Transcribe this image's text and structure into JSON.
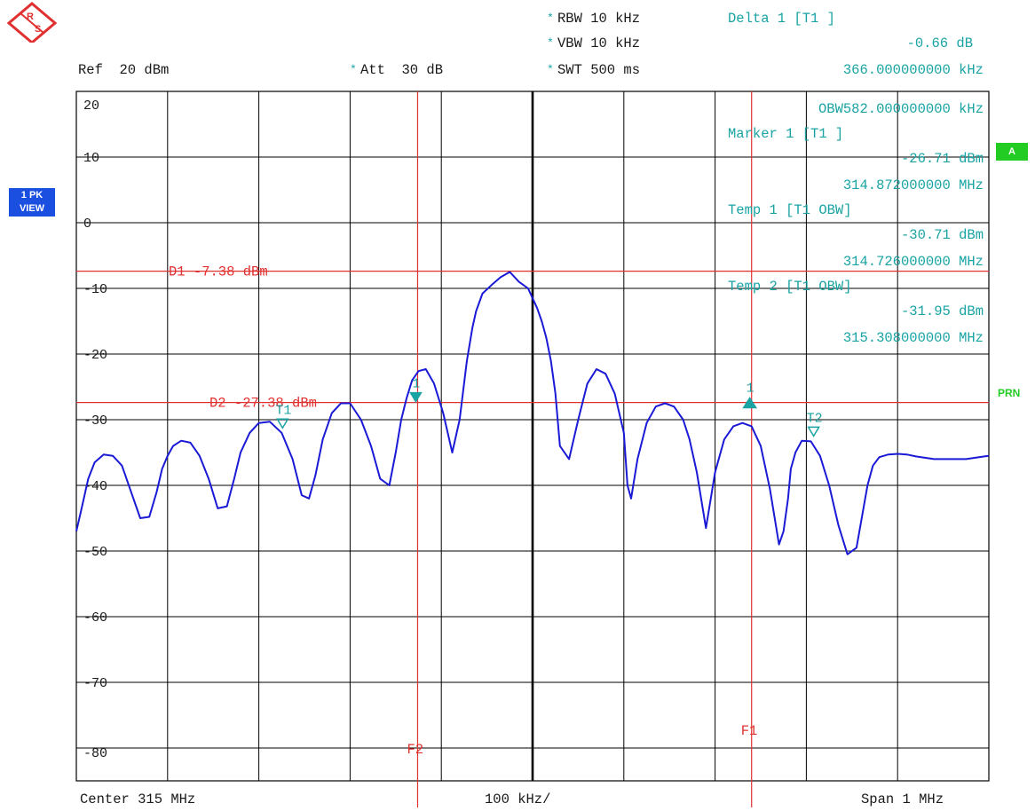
{
  "header": {
    "rbw": "RBW 10 kHz",
    "vbw": "VBW 10 kHz",
    "swt": "SWT 500 ms",
    "ref": "Ref  20 dBm",
    "att": "Att  30 dB",
    "asterisk": "*"
  },
  "marker_info": [
    "Delta 1 [T1 ]",
    "-0.66 dB",
    "366.000000000 kHz",
    "OBW582.000000000 kHz",
    "Marker 1 [T1 ]",
    "-26.71 dBm",
    "314.872000000 MHz",
    "Temp 1 [T1 OBW]",
    "-30.71 dBm",
    "314.726000000 MHz",
    "Temp 2 [T1 OBW]",
    "-31.95 dBm",
    "315.308000000 MHz"
  ],
  "side": {
    "trace_mode_line1": "1 PK",
    "trace_mode_line2": "VIEW",
    "badge_a": "A",
    "badge_prn": "PRN"
  },
  "footer": {
    "center": "Center 315 MHz",
    "div": "100 kHz/",
    "span": "Span 1 MHz"
  },
  "colors": {
    "trace": "#1a1ad6",
    "marker_lines": "#e03030",
    "marker_text": "#1aa3a3",
    "grid": "#000000",
    "side_badge_green": "#22cc22",
    "side_badge_blue": "#1a4fe0"
  },
  "chart_data": {
    "type": "line",
    "title": "",
    "xlabel": "",
    "ylabel": "",
    "xlim": [
      314.5,
      315.5
    ],
    "ylim": [
      -85,
      20
    ],
    "y_ticks": [
      20,
      10,
      0,
      -10,
      -20,
      -30,
      -40,
      -50,
      -60,
      -70,
      -80
    ],
    "y_tick_labels": [
      "20",
      "10",
      "0",
      "-10",
      "-20",
      "-30",
      "-40",
      "-50",
      "-60",
      "-70",
      "-80"
    ],
    "grid": true,
    "x_unit": "MHz",
    "y_unit": "dBm",
    "display_lines": [
      {
        "name": "D1",
        "label": "D1 -7.38 dBm",
        "value": -7.38
      },
      {
        "name": "D2",
        "label": "D2 -27.38 dBm",
        "value": -27.38
      }
    ],
    "freq_lines": [
      {
        "name": "F1",
        "label": "F1",
        "x": 315.24
      },
      {
        "name": "F2",
        "label": "F2",
        "x": 314.874
      }
    ],
    "markers": [
      {
        "label": "1",
        "x": 314.872,
        "y": -26.71,
        "kind": "down"
      },
      {
        "label": "1",
        "x": 315.238,
        "y": -27.37,
        "kind": "up"
      },
      {
        "label": "T1",
        "x": 314.726,
        "y": -30.71,
        "kind": "down"
      },
      {
        "label": "T2",
        "x": 315.308,
        "y": -31.95,
        "kind": "down"
      }
    ],
    "series": [
      {
        "x": [
          314.5,
          314.505,
          314.513,
          314.52,
          314.53,
          314.54,
          314.55,
          314.56,
          314.57,
          314.58,
          314.588,
          314.594,
          314.6,
          314.606,
          314.615,
          314.625,
          314.635,
          314.645,
          314.655,
          314.665,
          314.673,
          314.68,
          314.69,
          314.7,
          314.712,
          314.725,
          314.737,
          314.747,
          314.755,
          314.762,
          314.77,
          314.78,
          314.79,
          314.8,
          314.812,
          314.823,
          314.833,
          314.843,
          314.85,
          314.856,
          314.862,
          314.868,
          314.875,
          314.883,
          314.892,
          314.902,
          314.912,
          314.92,
          314.928,
          314.934,
          314.938,
          314.945,
          314.955,
          314.965,
          314.975,
          314.985,
          314.995,
          315.0,
          315.005,
          315.01,
          315.015,
          315.02,
          315.025,
          315.03,
          315.04,
          315.05,
          315.06,
          315.07,
          315.08,
          315.09,
          315.1,
          315.104,
          315.108,
          315.115,
          315.125,
          315.135,
          315.145,
          315.155,
          315.165,
          315.172,
          315.18,
          315.19,
          315.2,
          315.21,
          315.22,
          315.23,
          315.24,
          315.25,
          315.26,
          315.27,
          315.275,
          315.28,
          315.283,
          315.288,
          315.295,
          315.305,
          315.315,
          315.325,
          315.335,
          315.345,
          315.355,
          315.362,
          315.367,
          315.373,
          315.38,
          315.39,
          315.4,
          315.41,
          315.42,
          315.43,
          315.44,
          315.448,
          315.452,
          315.458,
          315.465,
          315.475,
          315.485,
          315.495,
          315.5
        ],
        "y": [
          -47,
          -44,
          -39,
          -36.5,
          -35.3,
          -35.5,
          -37,
          -41,
          -45,
          -44.8,
          -41,
          -37.5,
          -35.5,
          -34,
          -33.2,
          -33.5,
          -35.5,
          -39,
          -43.5,
          -43.2,
          -39,
          -35,
          -32,
          -30.5,
          -30.3,
          -32,
          -36,
          -41.5,
          -42,
          -38.5,
          -33,
          -29,
          -27.5,
          -27.5,
          -30,
          -34,
          -39,
          -40,
          -35,
          -30,
          -26.7,
          -24,
          -22.6,
          -22.3,
          -24.5,
          -29,
          -35,
          -30,
          -21,
          -16,
          -13.5,
          -10.8,
          -9.5,
          -8.3,
          -7.5,
          -9,
          -10,
          -11.5,
          -13,
          -15,
          -17.5,
          -21,
          -26,
          -34,
          -36,
          -30,
          -24.5,
          -22.3,
          -23,
          -26,
          -32,
          -40,
          -42,
          -36,
          -30.5,
          -28,
          -27.5,
          -28,
          -30,
          -33,
          -38,
          -46.5,
          -38,
          -33,
          -31,
          -30.5,
          -31,
          -34,
          -40.5,
          -49,
          -47,
          -42,
          -37.5,
          -35,
          -33.2,
          -33.3,
          -35.5,
          -40,
          -46,
          -50.5,
          -49.5,
          -44,
          -40,
          -37,
          -35.7,
          -35.3,
          -35.2,
          -35.3,
          -35.6,
          -35.8,
          -36,
          -36,
          -36,
          -36,
          -36,
          -36,
          -35.8,
          -35.6,
          -35.5
        ]
      }
    ]
  }
}
